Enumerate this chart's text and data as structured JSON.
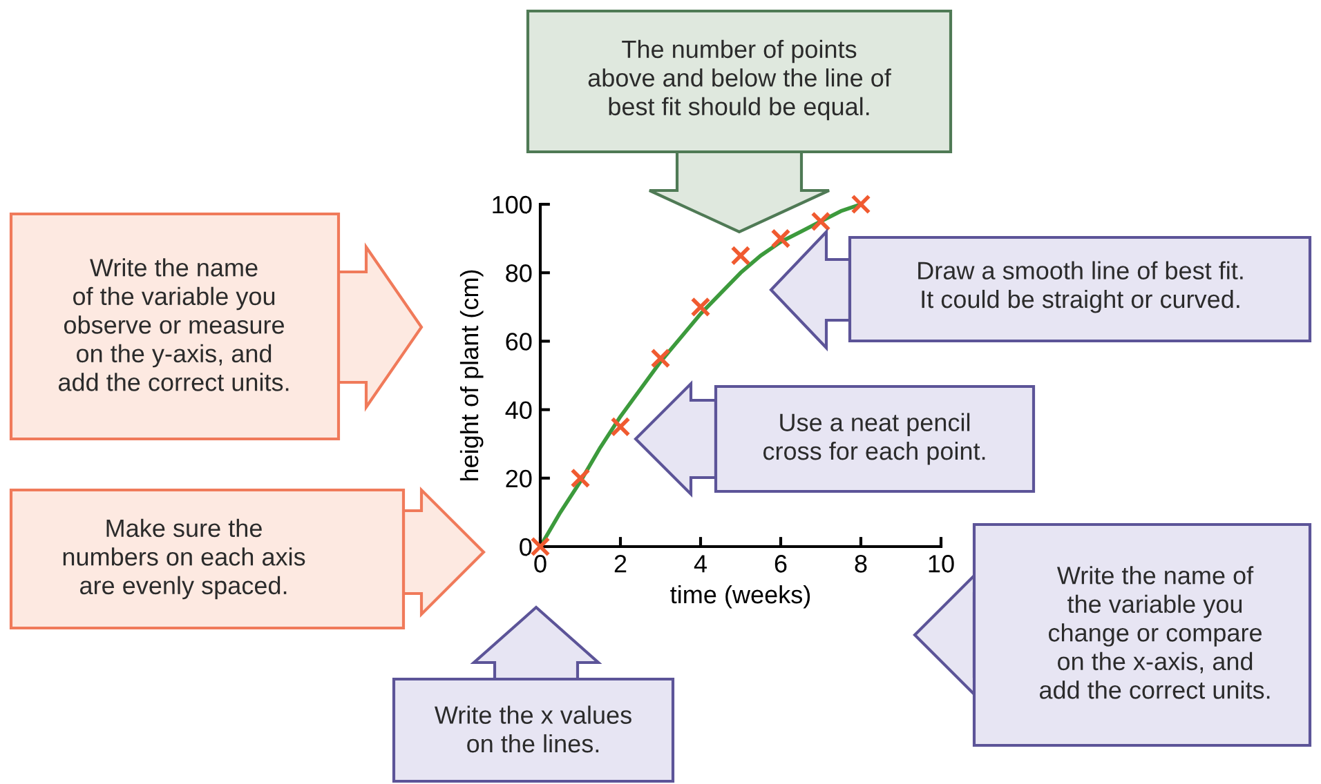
{
  "chart_data": {
    "type": "scatter",
    "xlabel": "time (weeks)",
    "ylabel": "height of plant (cm)",
    "xlim": [
      0,
      10
    ],
    "ylim": [
      0,
      100
    ],
    "xticks": [
      0,
      2,
      4,
      6,
      8,
      10
    ],
    "yticks": [
      0,
      20,
      40,
      60,
      80,
      100
    ],
    "grid": false,
    "legend": false,
    "series": [
      {
        "type": "line",
        "color": "#3c9a3c",
        "marker": "none",
        "line_style": "solid",
        "x": [
          0,
          0.5,
          1,
          1.5,
          2,
          2.5,
          3,
          3.5,
          4,
          4.5,
          5,
          5.5,
          6,
          6.5,
          7,
          7.5,
          8
        ],
        "values": [
          0,
          10,
          19,
          29,
          38,
          46,
          54,
          61,
          68,
          74,
          80,
          85,
          89,
          92,
          95,
          98,
          100
        ]
      },
      {
        "color": "#f05a30",
        "marker": "cross",
        "x": [
          0,
          1,
          2,
          3,
          4,
          5,
          6,
          7,
          8
        ],
        "values": [
          0,
          20,
          35,
          55,
          70,
          85,
          90,
          95,
          100
        ]
      }
    ],
    "annotations": [
      "The number of points\nabove and below the line of\nbest fit should be equal.",
      "Write the name\nof the variable you\nobserve or measure\non the y-axis, and\nadd the correct units.",
      "Draw a smooth line of best fit.\nIt could be straight or curved.",
      "Use a neat pencil\ncross for each point.",
      "Make sure the\nnumbers on each axis\nare evenly spaced.",
      "Write the x values\non the lines.",
      "Write the name of\nthe variable you\nchange or compare\non the x-axis, and\nadd the correct units."
    ]
  }
}
